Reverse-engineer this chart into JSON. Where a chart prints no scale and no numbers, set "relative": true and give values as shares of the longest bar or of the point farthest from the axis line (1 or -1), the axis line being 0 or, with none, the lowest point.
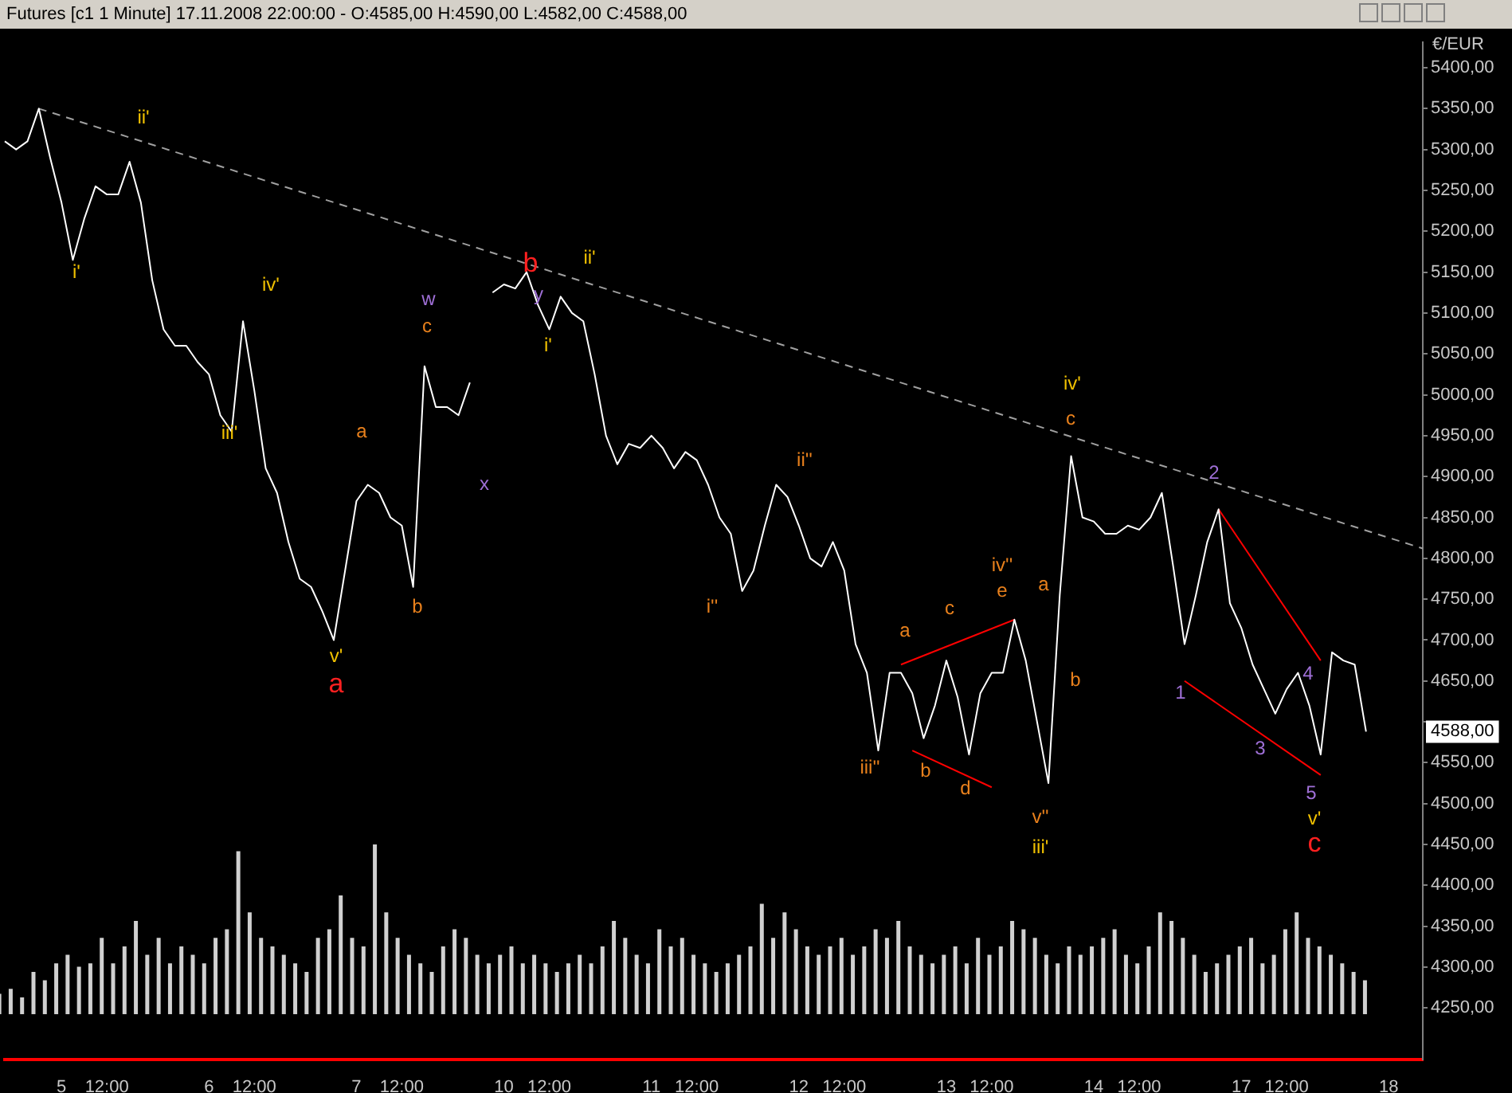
{
  "chart_data": [
    {
      "type": "line",
      "title": "Futures [c1  1 Minute] 17.11.2008 22:00:00 - O:4585,00 H:4590,00 L:4582,00 C:4588,00",
      "ylabel": "€/EUR",
      "marker": "none",
      "legend": false,
      "categories": [
        null,
        null,
        null,
        null,
        null,
        "5",
        null,
        null,
        null,
        "12:00",
        null,
        null,
        null,
        null,
        null,
        null,
        null,
        null,
        "6",
        null,
        null,
        null,
        "12:00",
        null,
        null,
        null,
        null,
        null,
        null,
        null,
        null,
        "7",
        null,
        null,
        null,
        "12:00",
        null,
        null,
        null,
        null,
        null,
        null,
        null,
        null,
        "10",
        null,
        null,
        null,
        "12:00",
        null,
        null,
        null,
        null,
        null,
        null,
        null,
        null,
        "11",
        null,
        null,
        null,
        "12:00",
        null,
        null,
        null,
        null,
        null,
        null,
        null,
        null,
        "12",
        null,
        null,
        null,
        "12:00",
        null,
        null,
        null,
        null,
        null,
        null,
        null,
        null,
        "13",
        null,
        null,
        null,
        "12:00",
        null,
        null,
        null,
        null,
        null,
        null,
        null,
        null,
        "14",
        null,
        null,
        null,
        "12:00",
        null,
        null,
        null,
        null,
        null,
        null,
        null,
        null,
        "17",
        null,
        null,
        null,
        "12:00",
        null,
        null,
        null,
        null,
        null,
        null,
        null,
        null,
        "18",
        null,
        null,
        null
      ],
      "ylim": [
        4187,
        5431
      ],
      "yticks": [
        {
          "value": 4250,
          "label": "4250,00"
        },
        {
          "value": 4300,
          "label": "4300,00"
        },
        {
          "value": 4350,
          "label": "4350,00"
        },
        {
          "value": 4400,
          "label": "4400,00"
        },
        {
          "value": 4450,
          "label": "4450,00"
        },
        {
          "value": 4500,
          "label": "4500,00"
        },
        {
          "value": 4550,
          "label": "4550,00"
        },
        {
          "value": 4600,
          "label": null
        },
        {
          "value": 4650,
          "label": "4650,00"
        },
        {
          "value": 4700,
          "label": "4700,00"
        },
        {
          "value": 4750,
          "label": "4750,00"
        },
        {
          "value": 4800,
          "label": "4800,00"
        },
        {
          "value": 4850,
          "label": "4850,00"
        },
        {
          "value": 4900,
          "label": "4900,00"
        },
        {
          "value": 4950,
          "label": "4950,00"
        },
        {
          "value": 5000,
          "label": "5000,00"
        },
        {
          "value": 5050,
          "label": "5050,00"
        },
        {
          "value": 5100,
          "label": "5100,00"
        },
        {
          "value": 5150,
          "label": "5150,00"
        },
        {
          "value": 5200,
          "label": "5200,00"
        },
        {
          "value": 5250,
          "label": "5250,00"
        },
        {
          "value": 5300,
          "label": "5300,00"
        },
        {
          "value": 5350,
          "label": "5350,00"
        },
        {
          "value": 5400,
          "label": "5400,00"
        }
      ],
      "series": [
        {
          "color": "#ffffff",
          "values": [
            5310,
            5300,
            5310,
            5350,
            5290,
            5235,
            5165,
            5215,
            5255,
            5245,
            5245,
            5285,
            5235,
            5140,
            5080,
            5060,
            5060,
            5040,
            5025,
            4975,
            4955,
            5090,
            5005,
            4910,
            4880,
            4820,
            4775,
            4765,
            4735,
            4700,
            4785,
            4870,
            4890,
            4880,
            4850,
            4840,
            4765,
            5035,
            4985,
            4985,
            4975,
            5015,
            null,
            5125,
            5135,
            5130,
            5150,
            5110,
            5080,
            5120,
            5100,
            5090,
            5025,
            4950,
            4915,
            4940,
            4935,
            4950,
            4935,
            4910,
            4930,
            4920,
            4890,
            4850,
            4830,
            4760,
            4785,
            4840,
            4890,
            4875,
            4840,
            4800,
            4790,
            4820,
            4785,
            4695,
            4660,
            4565,
            4660,
            4660,
            4635,
            4580,
            4620,
            4675,
            4630,
            4560,
            4635,
            4660,
            4660,
            4725,
            4675,
            4600,
            4525,
            4755,
            4925,
            4850,
            4845,
            4830,
            4830,
            4840,
            4835,
            4850,
            4880,
            4790,
            4695,
            4755,
            4820,
            4860,
            4745,
            4715,
            4670,
            4640,
            4610,
            4640,
            4660,
            4620,
            4560,
            4685,
            4675,
            4670,
            4588,
            null,
            null,
            null,
            null,
            null
          ]
        },
        {
          "type": "line",
          "line_style": "dashed",
          "color": "#a0a0a0",
          "values": [
            null,
            null,
            null,
            5350,
            null,
            null,
            null,
            null,
            null,
            null,
            null,
            null,
            null,
            null,
            null,
            null,
            null,
            null,
            null,
            null,
            null,
            null,
            null,
            null,
            null,
            null,
            null,
            null,
            null,
            null,
            null,
            null,
            null,
            null,
            null,
            null,
            null,
            null,
            null,
            null,
            null,
            null,
            null,
            null,
            null,
            null,
            null,
            null,
            null,
            null,
            null,
            null,
            null,
            null,
            null,
            null,
            null,
            null,
            null,
            null,
            null,
            null,
            null,
            null,
            null,
            null,
            null,
            null,
            null,
            null,
            null,
            null,
            null,
            null,
            null,
            null,
            null,
            null,
            null,
            null,
            null,
            null,
            null,
            null,
            null,
            null,
            null,
            null,
            null,
            null,
            null,
            null,
            null,
            null,
            null,
            null,
            null,
            null,
            null,
            null,
            null,
            null,
            null,
            null,
            null,
            null,
            null,
            null,
            null,
            null,
            null,
            null,
            null,
            null,
            null,
            null,
            null,
            null,
            null,
            null,
            null,
            null,
            null,
            null,
            null,
            4812
          ]
        },
        {
          "type": "line",
          "color": "#ff0000",
          "values": [
            null,
            null,
            null,
            null,
            null,
            null,
            null,
            null,
            null,
            null,
            null,
            null,
            null,
            null,
            null,
            null,
            null,
            null,
            null,
            null,
            null,
            null,
            null,
            null,
            null,
            null,
            null,
            null,
            null,
            null,
            null,
            null,
            null,
            null,
            null,
            null,
            null,
            null,
            null,
            null,
            null,
            null,
            null,
            null,
            null,
            null,
            null,
            null,
            null,
            null,
            null,
            null,
            null,
            null,
            null,
            null,
            null,
            null,
            null,
            null,
            null,
            null,
            null,
            null,
            null,
            null,
            null,
            null,
            null,
            null,
            null,
            null,
            null,
            null,
            null,
            null,
            null,
            null,
            null,
            4670,
            null,
            null,
            null,
            null,
            null,
            null,
            null,
            null,
            null,
            4725,
            null,
            null,
            null,
            null,
            null,
            null,
            null,
            null,
            null,
            null,
            null,
            null,
            null,
            null,
            null,
            null,
            null,
            null,
            null,
            null,
            null,
            null,
            null,
            null,
            null,
            null,
            null,
            null,
            null,
            null,
            null,
            null,
            null,
            null,
            null,
            null
          ]
        },
        {
          "type": "line",
          "color": "#ff0000",
          "values": [
            null,
            null,
            null,
            null,
            null,
            null,
            null,
            null,
            null,
            null,
            null,
            null,
            null,
            null,
            null,
            null,
            null,
            null,
            null,
            null,
            null,
            null,
            null,
            null,
            null,
            null,
            null,
            null,
            null,
            null,
            null,
            null,
            null,
            null,
            null,
            null,
            null,
            null,
            null,
            null,
            null,
            null,
            null,
            null,
            null,
            null,
            null,
            null,
            null,
            null,
            null,
            null,
            null,
            null,
            null,
            null,
            null,
            null,
            null,
            null,
            null,
            null,
            null,
            null,
            null,
            null,
            null,
            null,
            null,
            null,
            null,
            null,
            null,
            null,
            null,
            null,
            null,
            null,
            null,
            null,
            4565,
            null,
            null,
            null,
            null,
            null,
            null,
            4520,
            null,
            null,
            null,
            null,
            null,
            null,
            null,
            null,
            null,
            null,
            null,
            null,
            null,
            null,
            null,
            null,
            null,
            null,
            null,
            null,
            null,
            null,
            null,
            null,
            null,
            null,
            null,
            null,
            null,
            null,
            null,
            null,
            null,
            null,
            null,
            null,
            null,
            null
          ]
        },
        {
          "type": "line",
          "color": "#ff0000",
          "values": [
            null,
            null,
            null,
            null,
            null,
            null,
            null,
            null,
            null,
            null,
            null,
            null,
            null,
            null,
            null,
            null,
            null,
            null,
            null,
            null,
            null,
            null,
            null,
            null,
            null,
            null,
            null,
            null,
            null,
            null,
            null,
            null,
            null,
            null,
            null,
            null,
            null,
            null,
            null,
            null,
            null,
            null,
            null,
            null,
            null,
            null,
            null,
            null,
            null,
            null,
            null,
            null,
            null,
            null,
            null,
            null,
            null,
            null,
            null,
            null,
            null,
            null,
            null,
            null,
            null,
            null,
            null,
            null,
            null,
            null,
            null,
            null,
            null,
            null,
            null,
            null,
            null,
            null,
            null,
            null,
            null,
            null,
            null,
            null,
            null,
            null,
            null,
            null,
            null,
            null,
            null,
            null,
            null,
            null,
            null,
            null,
            null,
            null,
            null,
            null,
            null,
            null,
            null,
            null,
            4650,
            null,
            null,
            null,
            null,
            null,
            null,
            null,
            null,
            null,
            null,
            null,
            4535,
            null,
            null,
            null,
            null,
            null,
            null,
            null,
            null,
            null
          ]
        },
        {
          "type": "line",
          "color": "#ff0000",
          "values": [
            null,
            null,
            null,
            null,
            null,
            null,
            null,
            null,
            null,
            null,
            null,
            null,
            null,
            null,
            null,
            null,
            null,
            null,
            null,
            null,
            null,
            null,
            null,
            null,
            null,
            null,
            null,
            null,
            null,
            null,
            null,
            null,
            null,
            null,
            null,
            null,
            null,
            null,
            null,
            null,
            null,
            null,
            null,
            null,
            null,
            null,
            null,
            null,
            null,
            null,
            null,
            null,
            null,
            null,
            null,
            null,
            null,
            null,
            null,
            null,
            null,
            null,
            null,
            null,
            null,
            null,
            null,
            null,
            null,
            null,
            null,
            null,
            null,
            null,
            null,
            null,
            null,
            null,
            null,
            null,
            null,
            null,
            null,
            null,
            null,
            null,
            null,
            null,
            null,
            null,
            null,
            null,
            null,
            null,
            null,
            null,
            null,
            null,
            null,
            null,
            null,
            null,
            null,
            null,
            null,
            null,
            null,
            4860,
            null,
            null,
            null,
            null,
            null,
            null,
            null,
            null,
            4675,
            null,
            null,
            null,
            null,
            null,
            null,
            null,
            null,
            null
          ]
        }
      ],
      "annotations": [
        "i'",
        "ii'",
        "iii'",
        "iv'",
        "v'",
        "a",
        "a",
        "b",
        "c",
        "w",
        "x",
        "b",
        "y",
        "i'",
        "ii'",
        "i''",
        "ii''",
        "iii''",
        "a",
        "b",
        "c",
        "d",
        "iv''",
        "e",
        "a",
        "v''",
        "iii'",
        "b",
        "iv'",
        "c",
        "2",
        "1",
        "3",
        "4",
        "5",
        "v'",
        "c",
        "4588,00"
      ]
    },
    {
      "type": "bar",
      "relative": true,
      "color": "#d0d0d0",
      "categories": [
        null,
        null,
        null,
        null,
        null,
        null,
        null,
        null,
        null,
        null,
        null,
        null,
        null,
        null,
        null,
        null,
        null,
        null,
        null,
        null,
        null,
        null,
        null,
        null,
        null,
        null,
        null,
        null,
        null,
        null,
        null,
        null,
        null,
        null,
        null,
        null,
        null,
        null,
        null,
        null,
        null,
        null,
        null,
        null,
        null,
        null,
        null,
        null,
        null,
        null,
        null,
        null,
        null,
        null,
        null,
        null,
        null,
        null,
        null,
        null,
        null,
        null,
        null,
        null,
        null,
        null,
        null,
        null,
        null,
        null,
        null,
        null,
        null,
        null,
        null,
        null,
        null,
        null,
        null,
        null,
        null,
        null,
        null,
        null,
        null,
        null,
        null,
        null,
        null,
        null,
        null,
        null,
        null,
        null,
        null,
        null,
        null,
        null,
        null,
        null,
        null,
        null,
        null,
        null,
        null,
        null,
        null,
        null,
        null,
        null,
        null,
        null,
        null,
        null,
        null,
        null,
        null,
        null,
        null,
        null,
        null,
        null,
        null,
        null,
        null,
        null
      ],
      "values": [
        0.12,
        0.15,
        0.1,
        0.25,
        0.2,
        0.3,
        0.35,
        0.28,
        0.3,
        0.45,
        0.3,
        0.4,
        0.55,
        0.35,
        0.45,
        0.3,
        0.4,
        0.35,
        0.3,
        0.45,
        0.5,
        0.96,
        0.6,
        0.45,
        0.4,
        0.35,
        0.3,
        0.25,
        0.45,
        0.5,
        0.7,
        0.45,
        0.4,
        1,
        0.6,
        0.45,
        0.35,
        0.3,
        0.25,
        0.4,
        0.5,
        0.45,
        0.35,
        0.3,
        0.35,
        0.4,
        0.3,
        0.35,
        0.3,
        0.25,
        0.3,
        0.35,
        0.3,
        0.4,
        0.55,
        0.45,
        0.35,
        0.3,
        0.5,
        0.4,
        0.45,
        0.35,
        0.3,
        0.25,
        0.3,
        0.35,
        0.4,
        0.65,
        0.45,
        0.6,
        0.5,
        0.4,
        0.35,
        0.4,
        0.45,
        0.35,
        0.4,
        0.5,
        0.45,
        0.55,
        0.4,
        0.35,
        0.3,
        0.35,
        0.4,
        0.3,
        0.45,
        0.35,
        0.4,
        0.55,
        0.5,
        0.45,
        0.35,
        0.3,
        0.4,
        0.35,
        0.4,
        0.45,
        0.5,
        0.35,
        0.3,
        0.4,
        0.6,
        0.55,
        0.45,
        0.35,
        0.25,
        0.3,
        0.35,
        0.4,
        0.45,
        0.3,
        0.35,
        0.5,
        0.6,
        0.45,
        0.4,
        0.35,
        0.3,
        0.25,
        0.2,
        null,
        null,
        null,
        null,
        null
      ]
    }
  ]
}
